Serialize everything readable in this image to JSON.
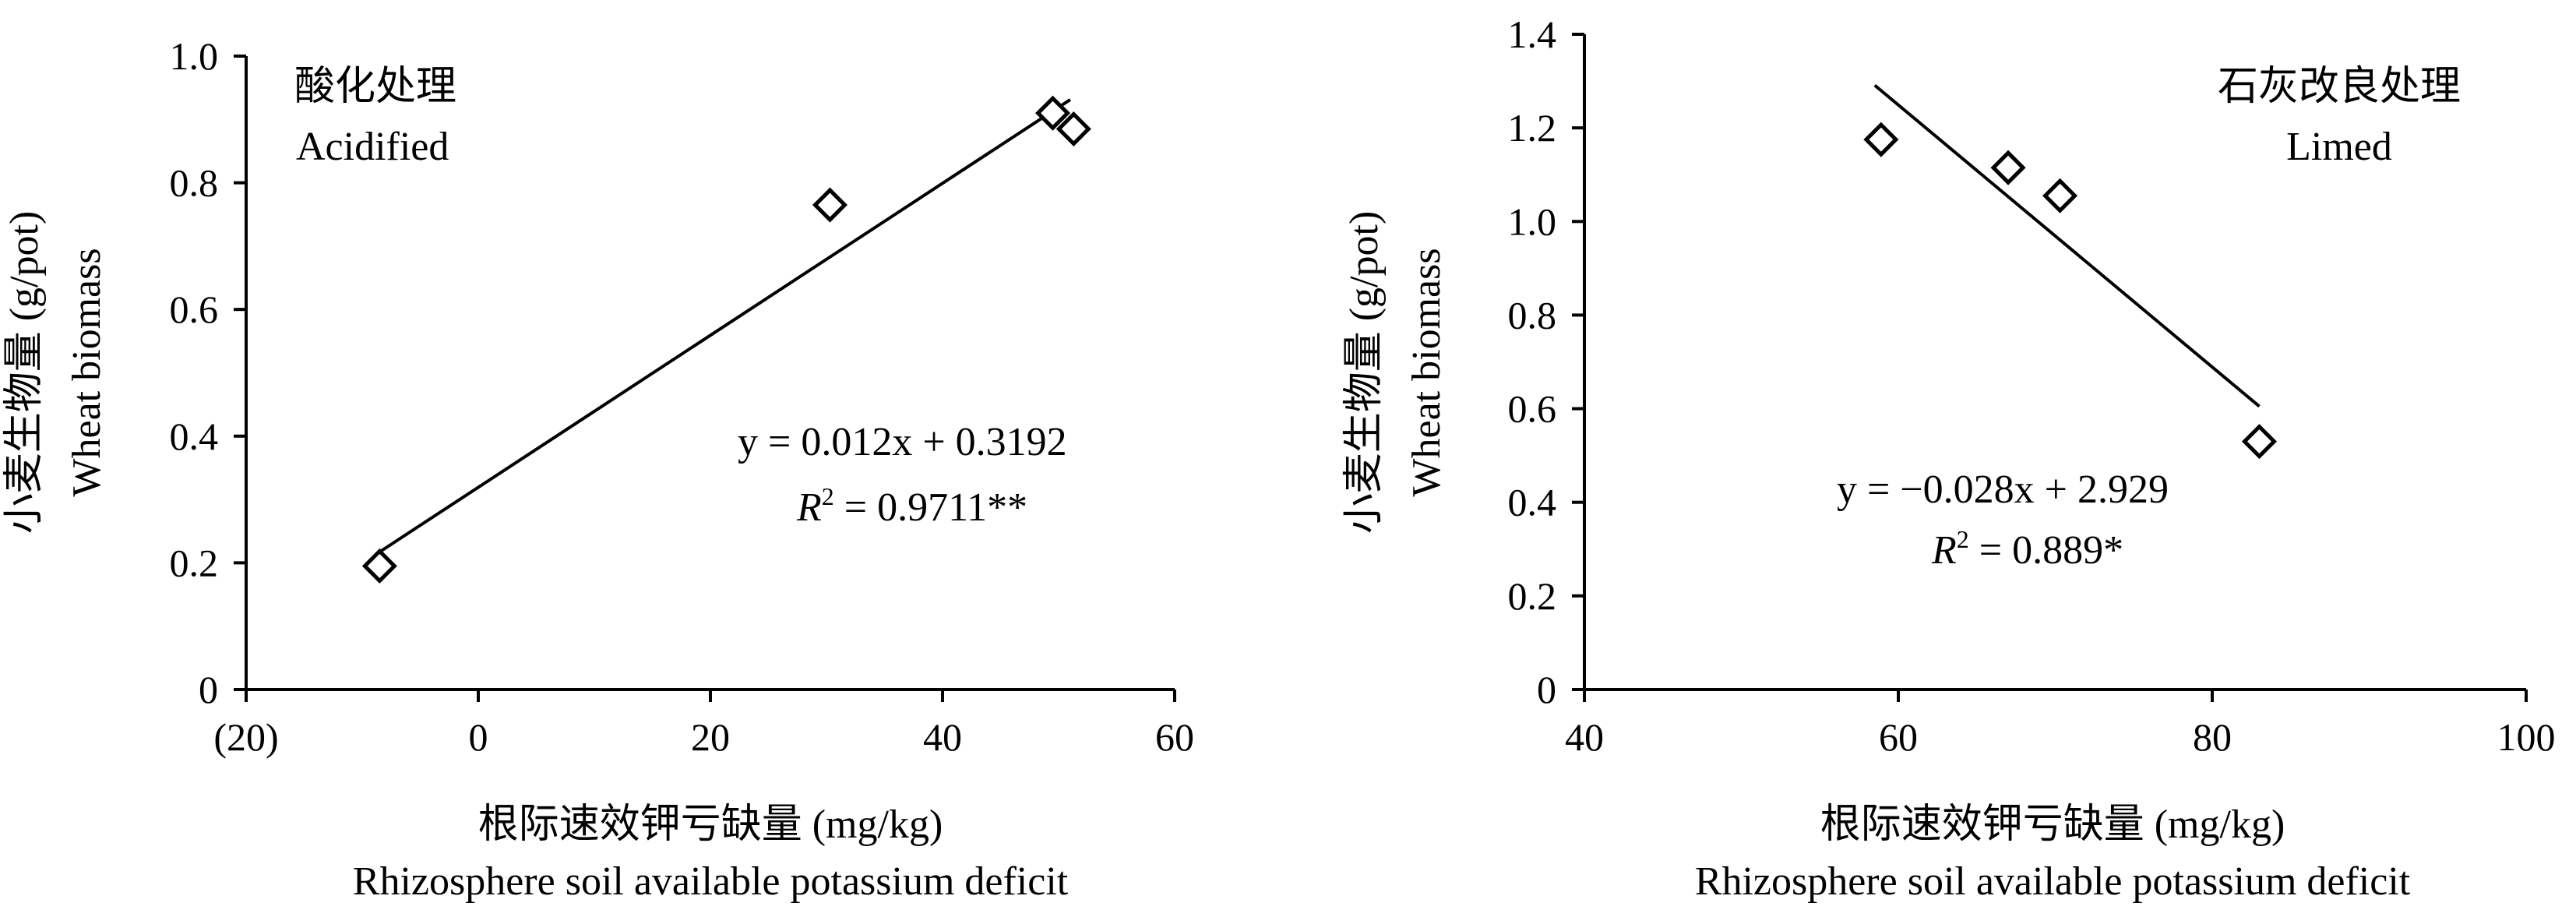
{
  "chart_data": [
    {
      "type": "scatter",
      "title": "酸化处理",
      "subtitle": "Acidified",
      "xlabel": "根际速效钾亏缺量 (mg/kg)",
      "xlabel_en": "Rhizosphere soil available potassium deficit",
      "ylabel": "小麦生物量 (g/pot)",
      "ylabel_en": "Wheat biomass",
      "xlim": [
        -20,
        60
      ],
      "ylim": [
        0,
        1.0
      ],
      "x_ticks": [
        -20,
        0,
        20,
        40,
        60
      ],
      "x_tick_labels": [
        "(20)",
        "0",
        "20",
        "40",
        "60"
      ],
      "y_ticks": [
        0,
        0.2,
        0.4,
        0.6,
        0.8,
        1.0
      ],
      "y_tick_labels": [
        "0",
        "0.2",
        "0.4",
        "0.6",
        "0.8",
        "1.0"
      ],
      "marker": "diamond",
      "points": [
        {
          "x": -8.5,
          "y": 0.195
        },
        {
          "x": 30.3,
          "y": 0.765
        },
        {
          "x": 49.5,
          "y": 0.91
        },
        {
          "x": 51.3,
          "y": 0.885
        }
      ],
      "trendline": {
        "slope": 0.012,
        "intercept": 0.3192,
        "x_range": [
          -8.5,
          51.0
        ]
      },
      "equation": "y = 0.012x + 0.3192",
      "r2_label": "R",
      "r2_sup": "2",
      "r2_value": " = 0.9711**"
    },
    {
      "type": "scatter",
      "title": "石灰改良处理",
      "subtitle": "Limed",
      "xlabel": "根际速效钾亏缺量 (mg/kg)",
      "xlabel_en": "Rhizosphere soil available potassium deficit",
      "ylabel": "小麦生物量 (g/pot)",
      "ylabel_en": "Wheat biomass",
      "xlim": [
        40,
        100
      ],
      "ylim": [
        0,
        1.4
      ],
      "x_ticks": [
        40,
        60,
        80,
        100
      ],
      "x_tick_labels": [
        "40",
        "60",
        "80",
        "100"
      ],
      "y_ticks": [
        0,
        0.2,
        0.4,
        0.6,
        0.8,
        1.0,
        1.2,
        1.4
      ],
      "y_tick_labels": [
        "0",
        "0.2",
        "0.4",
        "0.6",
        "0.8",
        "1.0",
        "1.2",
        "1.4"
      ],
      "marker": "diamond",
      "points": [
        {
          "x": 58.9,
          "y": 1.175
        },
        {
          "x": 67.0,
          "y": 1.115
        },
        {
          "x": 70.3,
          "y": 1.055
        },
        {
          "x": 83.0,
          "y": 0.53
        }
      ],
      "trendline": {
        "slope": -0.028,
        "intercept": 2.929,
        "x_range": [
          58.5,
          83.0
        ]
      },
      "equation": "y =  −0.028x + 2.929",
      "r2_label": "R",
      "r2_sup": "2",
      "r2_value": " = 0.889*"
    }
  ]
}
